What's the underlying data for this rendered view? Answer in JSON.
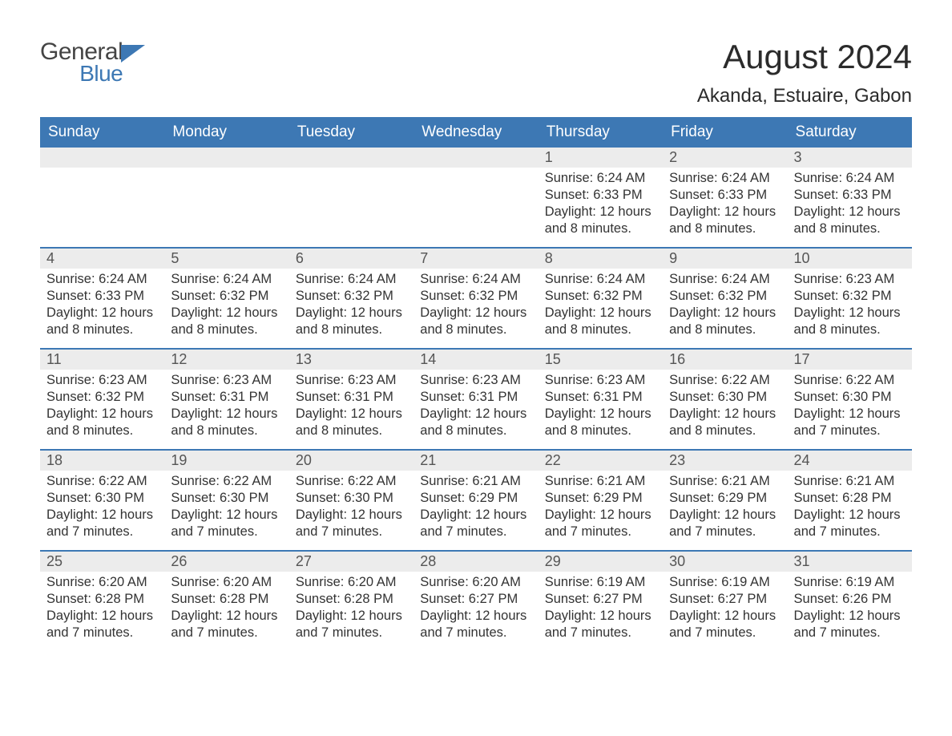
{
  "logo": {
    "word1": "General",
    "word2": "Blue",
    "color_general": "#444444",
    "color_blue": "#3d78b4",
    "icon_color": "#3d78b4"
  },
  "title": "August 2024",
  "location": "Akanda, Estuaire, Gabon",
  "colors": {
    "header_bg": "#3d78b4",
    "header_text": "#ffffff",
    "daynum_bg": "#ececec",
    "daynum_border": "#3d78b4",
    "body_text": "#333333",
    "page_bg": "#ffffff"
  },
  "weekdays": [
    "Sunday",
    "Monday",
    "Tuesday",
    "Wednesday",
    "Thursday",
    "Friday",
    "Saturday"
  ],
  "weeks": [
    [
      null,
      null,
      null,
      null,
      {
        "d": "1",
        "sr": "6:24 AM",
        "ss": "6:33 PM",
        "dl": "12 hours and 8 minutes."
      },
      {
        "d": "2",
        "sr": "6:24 AM",
        "ss": "6:33 PM",
        "dl": "12 hours and 8 minutes."
      },
      {
        "d": "3",
        "sr": "6:24 AM",
        "ss": "6:33 PM",
        "dl": "12 hours and 8 minutes."
      }
    ],
    [
      {
        "d": "4",
        "sr": "6:24 AM",
        "ss": "6:33 PM",
        "dl": "12 hours and 8 minutes."
      },
      {
        "d": "5",
        "sr": "6:24 AM",
        "ss": "6:32 PM",
        "dl": "12 hours and 8 minutes."
      },
      {
        "d": "6",
        "sr": "6:24 AM",
        "ss": "6:32 PM",
        "dl": "12 hours and 8 minutes."
      },
      {
        "d": "7",
        "sr": "6:24 AM",
        "ss": "6:32 PM",
        "dl": "12 hours and 8 minutes."
      },
      {
        "d": "8",
        "sr": "6:24 AM",
        "ss": "6:32 PM",
        "dl": "12 hours and 8 minutes."
      },
      {
        "d": "9",
        "sr": "6:24 AM",
        "ss": "6:32 PM",
        "dl": "12 hours and 8 minutes."
      },
      {
        "d": "10",
        "sr": "6:23 AM",
        "ss": "6:32 PM",
        "dl": "12 hours and 8 minutes."
      }
    ],
    [
      {
        "d": "11",
        "sr": "6:23 AM",
        "ss": "6:32 PM",
        "dl": "12 hours and 8 minutes."
      },
      {
        "d": "12",
        "sr": "6:23 AM",
        "ss": "6:31 PM",
        "dl": "12 hours and 8 minutes."
      },
      {
        "d": "13",
        "sr": "6:23 AM",
        "ss": "6:31 PM",
        "dl": "12 hours and 8 minutes."
      },
      {
        "d": "14",
        "sr": "6:23 AM",
        "ss": "6:31 PM",
        "dl": "12 hours and 8 minutes."
      },
      {
        "d": "15",
        "sr": "6:23 AM",
        "ss": "6:31 PM",
        "dl": "12 hours and 8 minutes."
      },
      {
        "d": "16",
        "sr": "6:22 AM",
        "ss": "6:30 PM",
        "dl": "12 hours and 8 minutes."
      },
      {
        "d": "17",
        "sr": "6:22 AM",
        "ss": "6:30 PM",
        "dl": "12 hours and 7 minutes."
      }
    ],
    [
      {
        "d": "18",
        "sr": "6:22 AM",
        "ss": "6:30 PM",
        "dl": "12 hours and 7 minutes."
      },
      {
        "d": "19",
        "sr": "6:22 AM",
        "ss": "6:30 PM",
        "dl": "12 hours and 7 minutes."
      },
      {
        "d": "20",
        "sr": "6:22 AM",
        "ss": "6:30 PM",
        "dl": "12 hours and 7 minutes."
      },
      {
        "d": "21",
        "sr": "6:21 AM",
        "ss": "6:29 PM",
        "dl": "12 hours and 7 minutes."
      },
      {
        "d": "22",
        "sr": "6:21 AM",
        "ss": "6:29 PM",
        "dl": "12 hours and 7 minutes."
      },
      {
        "d": "23",
        "sr": "6:21 AM",
        "ss": "6:29 PM",
        "dl": "12 hours and 7 minutes."
      },
      {
        "d": "24",
        "sr": "6:21 AM",
        "ss": "6:28 PM",
        "dl": "12 hours and 7 minutes."
      }
    ],
    [
      {
        "d": "25",
        "sr": "6:20 AM",
        "ss": "6:28 PM",
        "dl": "12 hours and 7 minutes."
      },
      {
        "d": "26",
        "sr": "6:20 AM",
        "ss": "6:28 PM",
        "dl": "12 hours and 7 minutes."
      },
      {
        "d": "27",
        "sr": "6:20 AM",
        "ss": "6:28 PM",
        "dl": "12 hours and 7 minutes."
      },
      {
        "d": "28",
        "sr": "6:20 AM",
        "ss": "6:27 PM",
        "dl": "12 hours and 7 minutes."
      },
      {
        "d": "29",
        "sr": "6:19 AM",
        "ss": "6:27 PM",
        "dl": "12 hours and 7 minutes."
      },
      {
        "d": "30",
        "sr": "6:19 AM",
        "ss": "6:27 PM",
        "dl": "12 hours and 7 minutes."
      },
      {
        "d": "31",
        "sr": "6:19 AM",
        "ss": "6:26 PM",
        "dl": "12 hours and 7 minutes."
      }
    ]
  ],
  "labels": {
    "sunrise": "Sunrise:",
    "sunset": "Sunset:",
    "daylight": "Daylight:"
  }
}
